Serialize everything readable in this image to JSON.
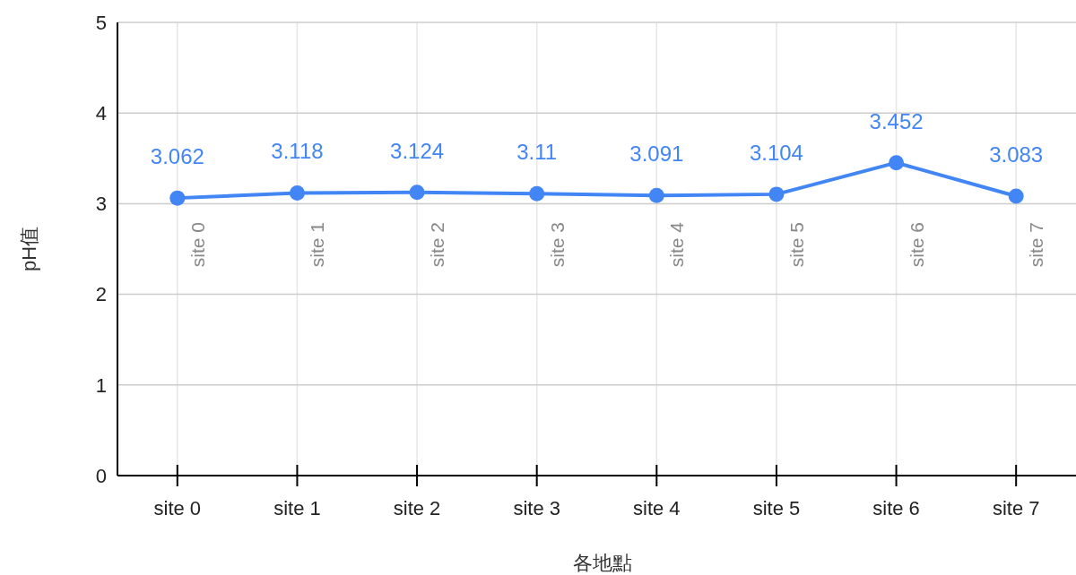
{
  "chart_data": {
    "type": "line",
    "xlabel": "各地點",
    "ylabel": "pH值",
    "categories": [
      "site 0",
      "site 1",
      "site 2",
      "site 3",
      "site 4",
      "site 5",
      "site 6",
      "site 7"
    ],
    "series": [
      {
        "color": "#4285f4",
        "values": [
          3.062,
          3.118,
          3.124,
          3.11,
          3.091,
          3.104,
          3.452,
          3.083
        ]
      }
    ],
    "ylim": [
      0,
      5
    ],
    "yticks": [
      0,
      1,
      2,
      3,
      4,
      5
    ],
    "grid": true,
    "marker": "circle",
    "line_style": "solid",
    "data_labels": true,
    "annotations": [
      "site 0",
      "site 1",
      "site 2",
      "site 3",
      "site 4",
      "site 5",
      "site 6",
      "site 7"
    ]
  }
}
